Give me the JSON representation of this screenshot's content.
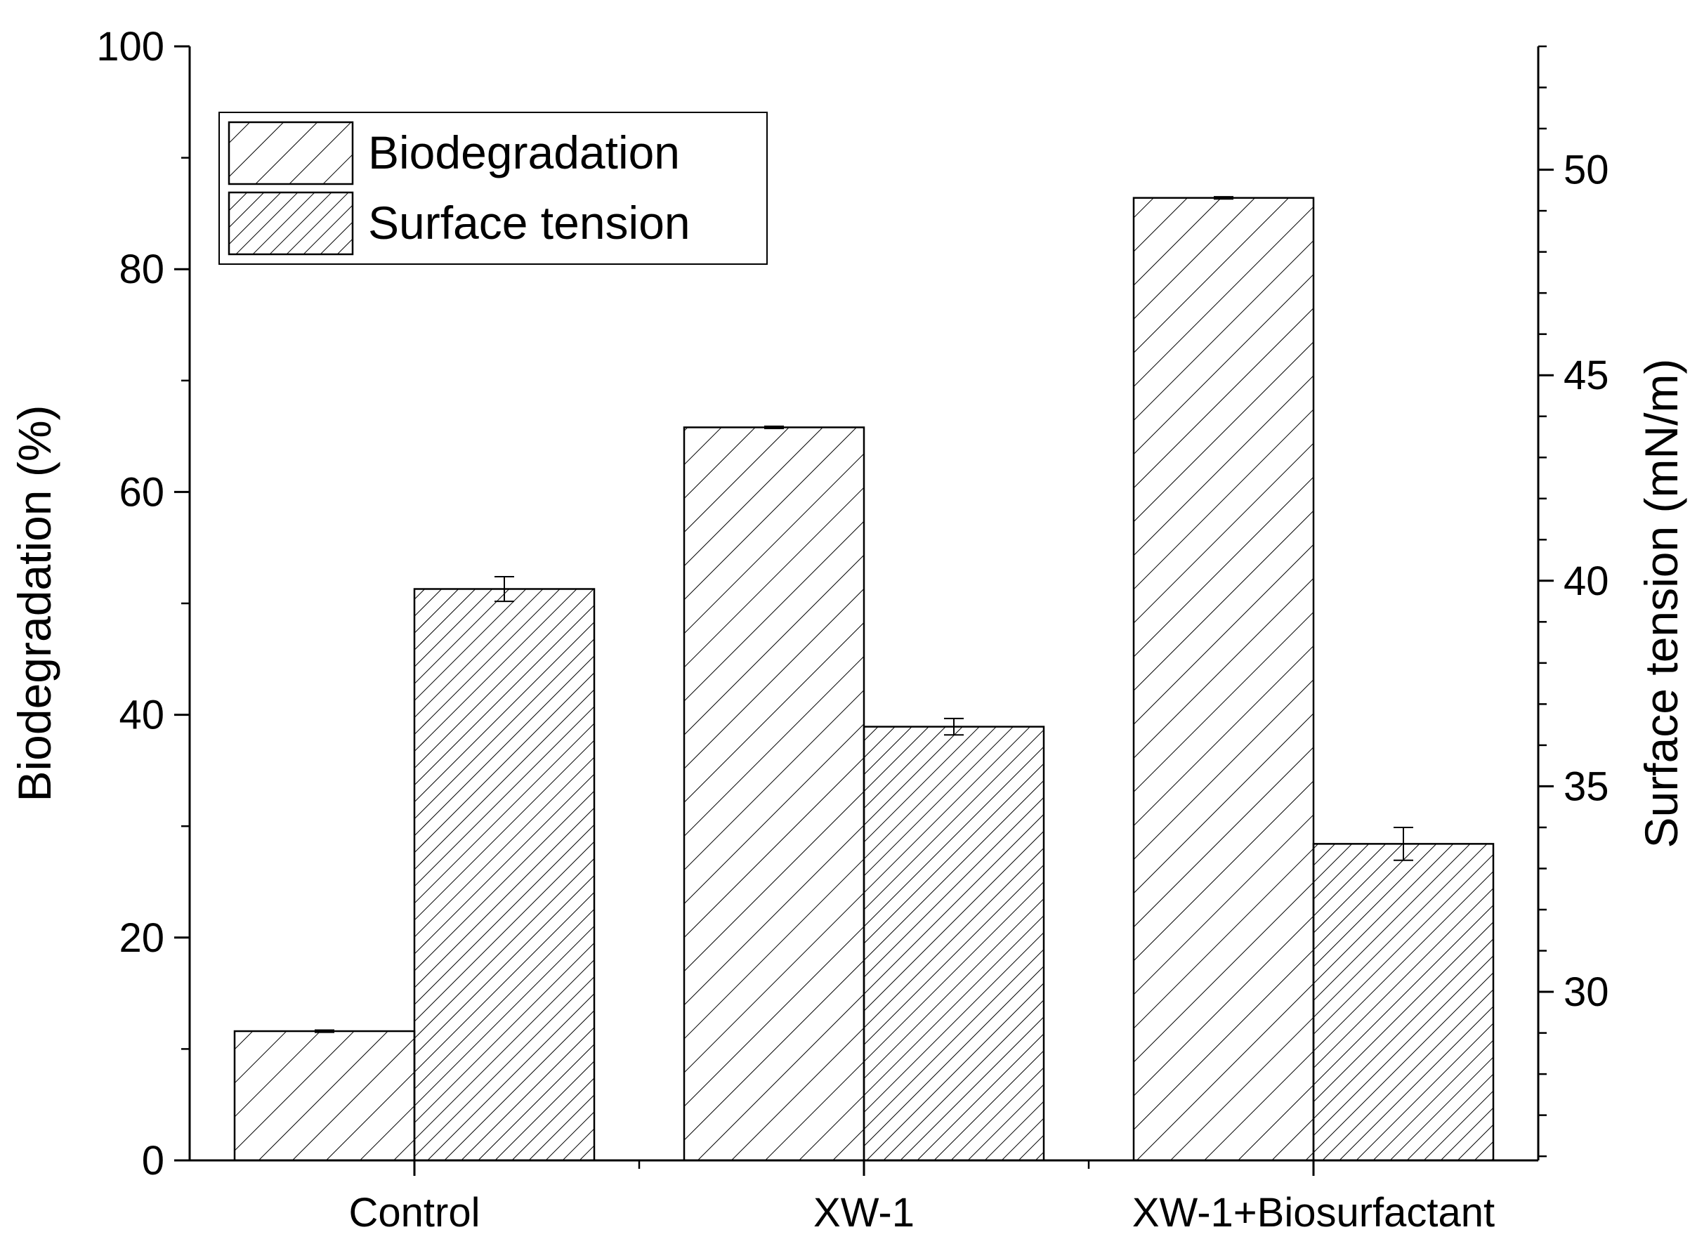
{
  "chart_data": {
    "type": "bar",
    "categories": [
      "Control",
      "XW-1",
      "XW-1+Biosurfactant"
    ],
    "series": [
      {
        "name": "Biodegradation",
        "axis": "left",
        "pattern": "sparse-hatch",
        "values": [
          11.6,
          65.8,
          86.4
        ],
        "errors": [
          0.1,
          0.1,
          0.1
        ]
      },
      {
        "name": "Surface tension",
        "axis": "right",
        "pattern": "dense-hatch",
        "values": [
          39.8,
          36.45,
          33.6
        ],
        "errors": [
          0.3,
          0.2,
          0.4
        ]
      }
    ],
    "left_axis": {
      "label": "Biodegradation (%)",
      "range": [
        0,
        100
      ],
      "ticks": [
        0,
        20,
        40,
        60,
        80,
        100
      ],
      "tick_labels": [
        "0",
        "20",
        "40",
        "60",
        "80",
        "100"
      ],
      "minor_step": 10
    },
    "right_axis": {
      "label": "Surface tension (mN/m)",
      "range": [
        25.9,
        53
      ],
      "ticks": [
        30,
        35,
        40,
        45,
        50
      ],
      "tick_labels": [
        "30",
        "35",
        "40",
        "45",
        "50"
      ],
      "minor_step": 1
    },
    "legend": {
      "position": "top-left",
      "entries": [
        "Biodegradation",
        "Surface tension"
      ]
    },
    "grid": false,
    "colors": {
      "stroke": "#000000",
      "fill": "#ffffff"
    }
  }
}
